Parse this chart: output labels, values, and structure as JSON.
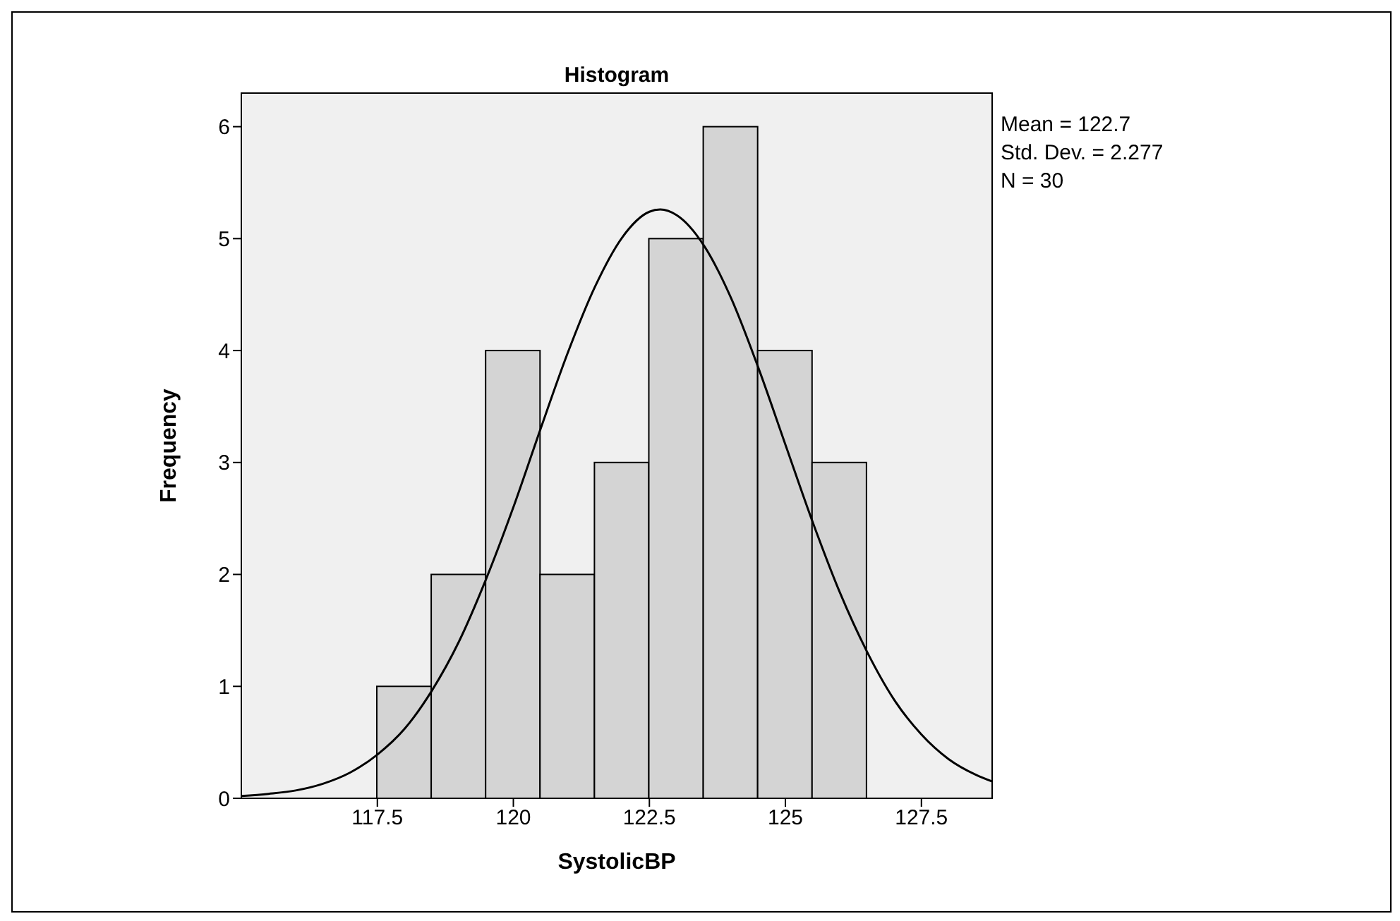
{
  "chart_data": {
    "type": "histogram",
    "title": "Histogram",
    "xlabel": "SystolicBP",
    "ylabel": "Frequency",
    "bins": [
      117.5,
      118.5,
      119.5,
      120.5,
      121.5,
      122.5,
      123.5,
      124.5,
      125.5,
      126.5
    ],
    "values": [
      1,
      2,
      4,
      2,
      3,
      5,
      6,
      4,
      3
    ],
    "color": "#d4d4d4",
    "xlim": [
      115,
      128.8
    ],
    "xticks": [
      117.5,
      120,
      122.5,
      125,
      127.5
    ],
    "ylim": [
      0,
      6.3
    ],
    "yticks": [
      0,
      1,
      2,
      3,
      4,
      5,
      6
    ],
    "annotations": [
      "Mean = 122.7",
      "Std. Dev. = 2.277",
      "N = 30"
    ],
    "marker": "none",
    "series": [
      {
        "type": "line",
        "color": "#000000",
        "x": [
          115,
          115.5,
          116,
          116.5,
          117,
          117.5,
          118,
          118.5,
          119,
          119.5,
          120,
          120.5,
          121,
          121.5,
          122,
          122.5,
          122.7,
          123,
          123.5,
          124,
          124.5,
          125,
          125.5,
          126,
          126.5,
          127,
          127.5,
          128,
          128.5,
          128.8
        ],
        "values": [
          0.02,
          0.04,
          0.07,
          0.13,
          0.23,
          0.39,
          0.62,
          0.96,
          1.4,
          1.96,
          2.6,
          3.3,
          3.98,
          4.57,
          5.01,
          5.24,
          5.26,
          5.21,
          4.94,
          4.47,
          3.85,
          3.16,
          2.47,
          1.84,
          1.31,
          0.88,
          0.57,
          0.35,
          0.21,
          0.15
        ]
      }
    ]
  }
}
